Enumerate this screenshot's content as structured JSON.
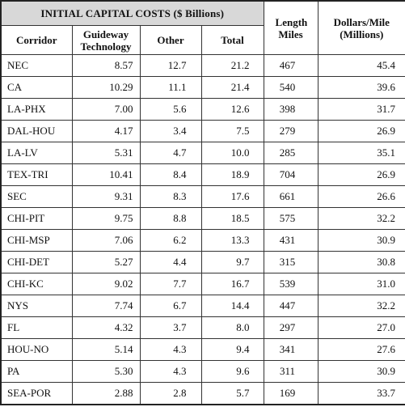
{
  "table": {
    "group_header": "INITIAL CAPITAL COSTS ($ Billions)",
    "columns": [
      "Corridor",
      "Guideway Technology",
      "Other",
      "Total",
      "Length Miles",
      "Dollars/Mile (Millions)"
    ],
    "rows": [
      [
        "NEC",
        "8.57",
        "12.7",
        "21.2",
        "467",
        "45.4"
      ],
      [
        "CA",
        "10.29",
        "11.1",
        "21.4",
        "540",
        "39.6"
      ],
      [
        "LA-PHX",
        "7.00",
        "5.6",
        "12.6",
        "398",
        "31.7"
      ],
      [
        "DAL-HOU",
        "4.17",
        "3.4",
        "7.5",
        "279",
        "26.9"
      ],
      [
        "LA-LV",
        "5.31",
        "4.7",
        "10.0",
        "285",
        "35.1"
      ],
      [
        "TEX-TRI",
        "10.41",
        "8.4",
        "18.9",
        "704",
        "26.9"
      ],
      [
        "SEC",
        "9.31",
        "8.3",
        "17.6",
        "661",
        "26.6"
      ],
      [
        "CHI-PIT",
        "9.75",
        "8.8",
        "18.5",
        "575",
        "32.2"
      ],
      [
        "CHI-MSP",
        "7.06",
        "6.2",
        "13.3",
        "431",
        "30.9"
      ],
      [
        "CHI-DET",
        "5.27",
        "4.4",
        "9.7",
        "315",
        "30.8"
      ],
      [
        "CHI-KC",
        "9.02",
        "7.7",
        "16.7",
        "539",
        "31.0"
      ],
      [
        "NYS",
        "7.74",
        "6.7",
        "14.4",
        "447",
        "32.2"
      ],
      [
        "FL",
        "4.32",
        "3.7",
        "8.0",
        "297",
        "27.0"
      ],
      [
        "HOU-NO",
        "5.14",
        "4.3",
        "9.4",
        "341",
        "27.6"
      ],
      [
        "PA",
        "5.30",
        "4.3",
        "9.6",
        "311",
        "30.9"
      ],
      [
        "SEA-POR",
        "2.88",
        "2.8",
        "5.7",
        "169",
        "33.7"
      ]
    ]
  }
}
